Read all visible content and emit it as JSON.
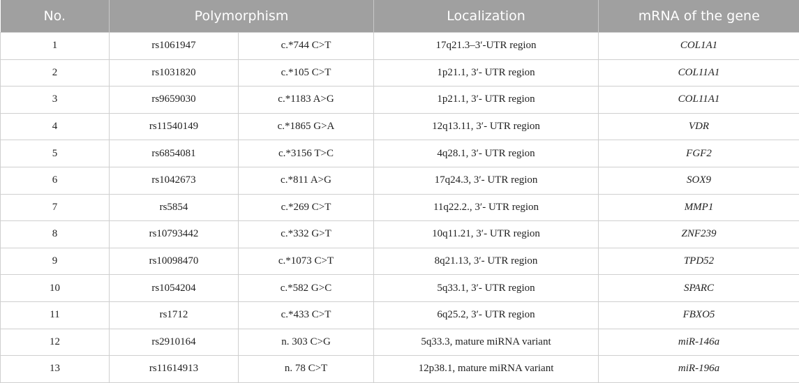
{
  "headers": {
    "no": "No.",
    "polymorphism": "Polymorphism",
    "localization": "Localization",
    "mrna": "mRNA of the gene"
  },
  "rows": [
    {
      "no": "1",
      "rs": "rs1061947",
      "variant": "c.*744 C>T",
      "localization": "17q21.3–3′-UTR region",
      "gene": "COL1A1"
    },
    {
      "no": "2",
      "rs": "rs1031820",
      "variant": "c.*105 C>T",
      "localization": "1p21.1, 3′- UTR region",
      "gene": "COL11A1"
    },
    {
      "no": "3",
      "rs": "rs9659030",
      "variant": "c.*1183 A>G",
      "localization": "1p21.1, 3′- UTR region",
      "gene": "COL11A1"
    },
    {
      "no": "4",
      "rs": "rs11540149",
      "variant": "c.*1865 G>A",
      "localization": "12q13.11, 3′- UTR region",
      "gene": "VDR"
    },
    {
      "no": "5",
      "rs": "rs6854081",
      "variant": "c.*3156 T>C",
      "localization": "4q28.1, 3′- UTR region",
      "gene": "FGF2"
    },
    {
      "no": "6",
      "rs": "rs1042673",
      "variant": "c.*811 A>G",
      "localization": "17q24.3, 3′- UTR region",
      "gene": "SOX9"
    },
    {
      "no": "7",
      "rs": "rs5854",
      "variant": "c.*269 C>T",
      "localization": "11q22.2., 3′- UTR region",
      "gene": "MMP1"
    },
    {
      "no": "8",
      "rs": "rs10793442",
      "variant": "c.*332 G>T",
      "localization": "10q11.21, 3′- UTR region",
      "gene": "ZNF239"
    },
    {
      "no": "9",
      "rs": "rs10098470",
      "variant": "c.*1073 C>T",
      "localization": "8q21.13, 3′- UTR region",
      "gene": "TPD52"
    },
    {
      "no": "10",
      "rs": "rs1054204",
      "variant": "c.*582 G>C",
      "localization": "5q33.1, 3′- UTR region",
      "gene": "SPARC"
    },
    {
      "no": "11",
      "rs": "rs1712",
      "variant": "c.*433 C>T",
      "localization": "6q25.2, 3′- UTR region",
      "gene": "FBXO5"
    },
    {
      "no": "12",
      "rs": "rs2910164",
      "variant": "n. 303 C>G",
      "localization": "5q33.3, mature miRNA variant",
      "gene": "miR-146a"
    },
    {
      "no": "13",
      "rs": "rs11614913",
      "variant": "n. 78 C>T",
      "localization": "12p38.1, mature miRNA variant",
      "gene": "miR-196a"
    }
  ]
}
